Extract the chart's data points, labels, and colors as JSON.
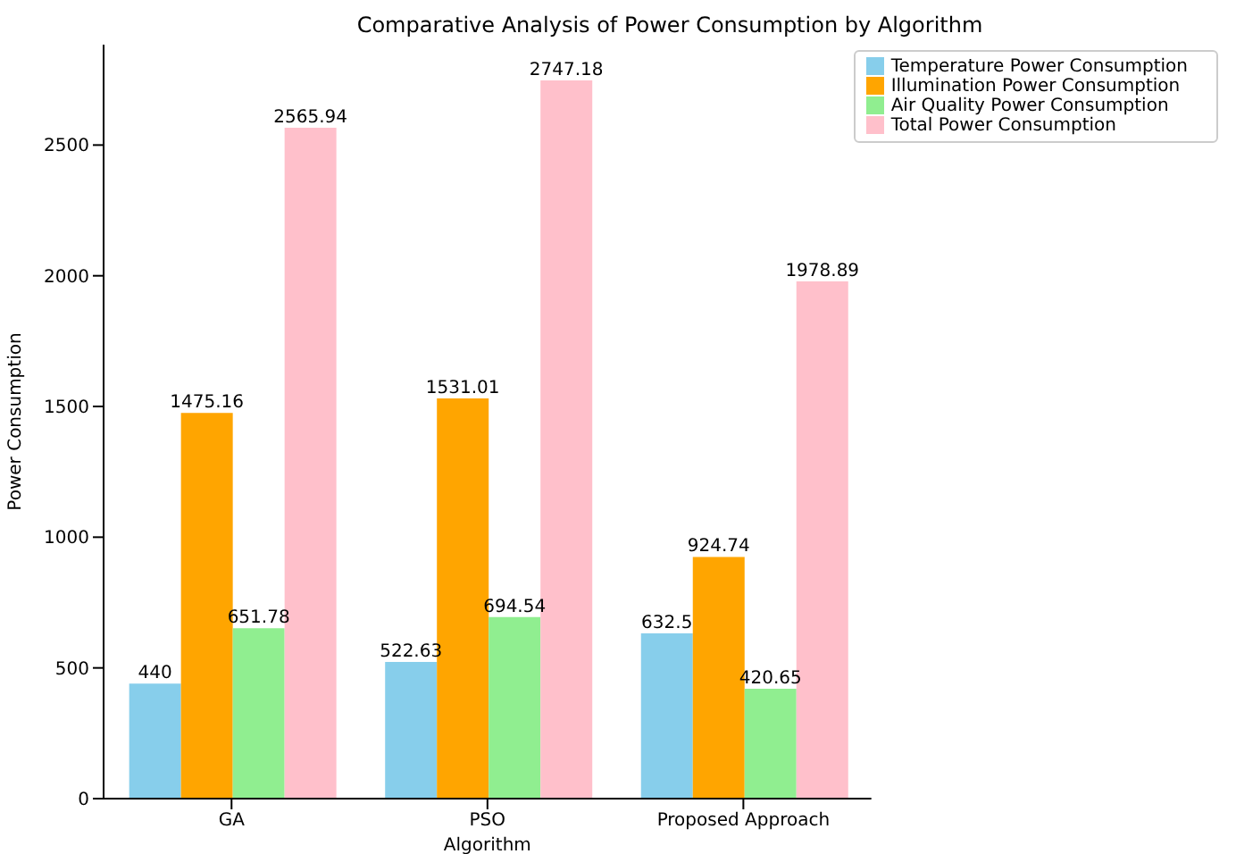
{
  "chart_data": {
    "type": "bar",
    "title": "Comparative Analysis of Power Consumption by Algorithm",
    "xlabel": "Algorithm",
    "ylabel": "Power Consumption",
    "categories": [
      "GA",
      "PSO",
      "Proposed Approach"
    ],
    "series": [
      {
        "name": "Temperature Power Consumption",
        "color": "#87ceeb",
        "values": [
          440,
          522.63,
          632.5
        ]
      },
      {
        "name": "Illumination Power Consumption",
        "color": "#ffa500",
        "values": [
          1475.16,
          1531.01,
          924.74
        ]
      },
      {
        "name": "Air Quality Power Consumption",
        "color": "#90ee90",
        "values": [
          651.78,
          694.54,
          420.65
        ]
      },
      {
        "name": "Total Power Consumption",
        "color": "#ffc0cb",
        "values": [
          2565.94,
          2747.18,
          1978.89
        ]
      }
    ],
    "ylim": [
      0,
      2884
    ],
    "yticks": [
      0,
      500,
      1000,
      1500,
      2000,
      2500
    ],
    "data_labels": true,
    "legend": "top right",
    "grid": false
  }
}
